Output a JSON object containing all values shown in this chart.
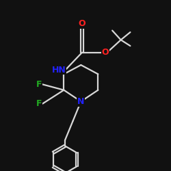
{
  "background_color": "#111111",
  "bond_color": "#d8d8d8",
  "bond_lw": 1.6,
  "atom_colors": {
    "O": "#ff2222",
    "N": "#2222ff",
    "F": "#22aa22",
    "C": "#d8d8d8"
  },
  "fig_size": [
    2.5,
    2.5
  ],
  "dpi": 100,
  "xlim": [
    0,
    10
  ],
  "ylim": [
    0,
    10
  ]
}
